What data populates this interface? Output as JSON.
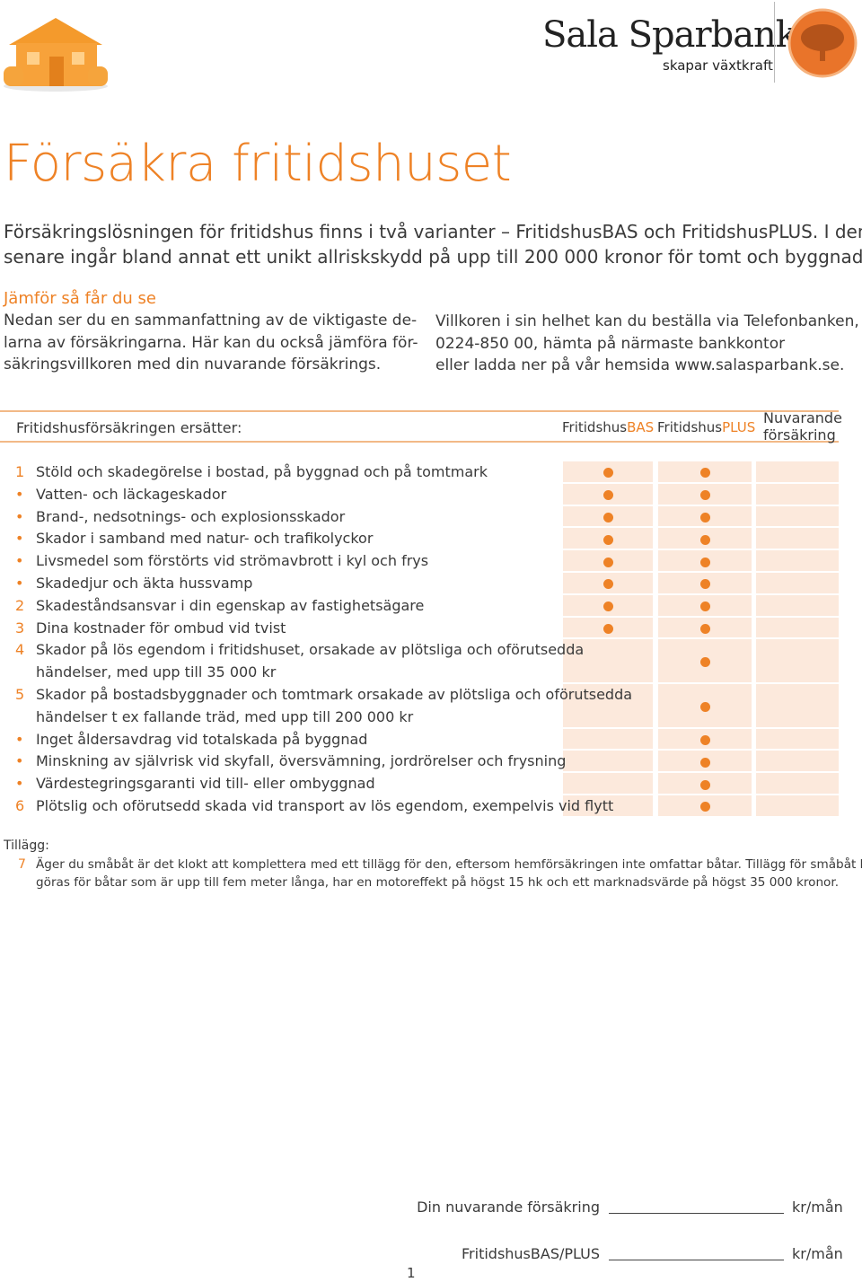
{
  "header": {
    "brand": "Sala Sparbank",
    "tagline": "skapar växtkraft"
  },
  "title": "Försäkra fritidshuset",
  "intro": [
    "Försäkringslösningen för fritidshus finns i två varianter – FritidshusBAS och FritidshusPLUS. I den",
    "senare ingår bland annat ett unikt allriskskydd på upp till 200 000 kronor för tomt och byggnad."
  ],
  "compare": {
    "heading": "Jämför så får du se",
    "left": [
      "Nedan ser du en sammanfattning av de viktigaste de-",
      "larna av försäkringarna. Här kan du också jämföra för-",
      "säkringsvillkoren med din nuvarande försäkrings."
    ],
    "right": [
      "Villkoren i sin helhet kan du beställa via Telefonbanken,",
      "0224-850 00, hämta på närmaste bankkontor",
      "eller ladda ner på vår hemsida www.salasparbank.se."
    ]
  },
  "table": {
    "caption": "Fritidshusförsäkringen ersätter:",
    "columns": [
      {
        "base": "Fritidshus",
        "suffix": "BAS"
      },
      {
        "base": "Fritidshus",
        "suffix": "PLUS"
      },
      {
        "lines": [
          "Nuvarande",
          "försäkring"
        ]
      }
    ],
    "rows": [
      {
        "marker": "1",
        "lines": [
          "Stöld och skadegörelse i bostad, på byggnad och på tomtmark"
        ],
        "bas": true,
        "plus": true
      },
      {
        "marker": "•",
        "lines": [
          "Vatten- och läckageskador"
        ],
        "bas": true,
        "plus": true
      },
      {
        "marker": "•",
        "lines": [
          "Brand-, nedsotnings- och explosionsskador"
        ],
        "bas": true,
        "plus": true
      },
      {
        "marker": "•",
        "lines": [
          "Skador i samband med natur- och trafikolyckor"
        ],
        "bas": true,
        "plus": true
      },
      {
        "marker": "•",
        "lines": [
          "Livsmedel som förstörts vid strömavbrott i kyl och frys"
        ],
        "bas": true,
        "plus": true
      },
      {
        "marker": "•",
        "lines": [
          "Skadedjur och äkta hussvamp"
        ],
        "bas": true,
        "plus": true
      },
      {
        "marker": "2",
        "lines": [
          "Skadeståndsansvar i din egenskap av fastighetsägare"
        ],
        "bas": true,
        "plus": true
      },
      {
        "marker": "3",
        "lines": [
          "Dina kostnader för ombud vid tvist"
        ],
        "bas": true,
        "plus": true
      },
      {
        "marker": "4",
        "lines": [
          "Skador på lös egendom i fritidshuset, orsakade av plötsliga och oförutsedda",
          "händelser, med upp till 35 000 kr"
        ],
        "bas": false,
        "plus": true
      },
      {
        "marker": "5",
        "lines": [
          "Skador på bostadsbyggnader och tomtmark orsakade av plötsliga och oförutsedda",
          "händelser t ex fallande träd, med upp till 200 000 kr"
        ],
        "bas": false,
        "plus": true
      },
      {
        "marker": "•",
        "lines": [
          "Inget åldersavdrag vid totalskada på byggnad"
        ],
        "bas": false,
        "plus": true
      },
      {
        "marker": "•",
        "lines": [
          "Minskning av självrisk vid skyfall, översvämning, jordrörelser och frysning"
        ],
        "bas": false,
        "plus": true
      },
      {
        "marker": "•",
        "lines": [
          "Värdestegringsgaranti vid till- eller ombyggnad"
        ],
        "bas": false,
        "plus": true
      },
      {
        "marker": "6",
        "lines": [
          "Plötslig och oförutsedd skada vid transport av lös egendom, exempelvis vid flytt"
        ],
        "bas": false,
        "plus": true
      }
    ]
  },
  "addon": {
    "label": "Tillägg:",
    "marker": "7",
    "lines": [
      "Äger du småbåt är det klokt att komplettera med ett tillägg för den,  eftersom hemförsäkringen inte omfattar båtar. Tillägg för småbåt kan",
      "göras för båtar som är upp till fem meter långa, har en motoreffekt på högst 15 hk och ett marknadsvärde på högst 35 000 kronor."
    ]
  },
  "footer": {
    "fields": [
      {
        "label": "Din nuvarande försäkring",
        "unit": "kr/mån"
      },
      {
        "label": "FritidshusBAS/PLUS",
        "unit": "kr/mån"
      }
    ],
    "page": "1"
  }
}
